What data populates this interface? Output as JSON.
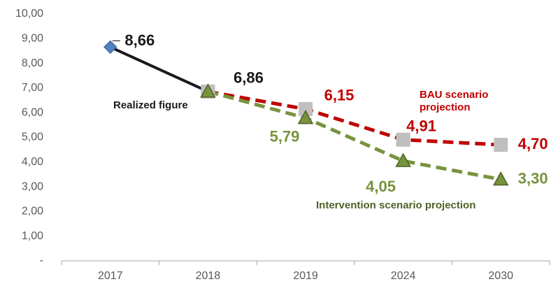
{
  "chart_data": {
    "type": "line",
    "categories": [
      "2017",
      "2018",
      "2019",
      "2024",
      "2030"
    ],
    "series": [
      {
        "name": "Realized figure",
        "color": "#1a1a1a",
        "marker": "diamond",
        "marker_color": "#4f81bd",
        "dashed": false,
        "values": [
          8.66,
          6.86,
          null,
          null,
          null
        ],
        "value_labels": [
          "8,66",
          "6,86",
          null,
          null,
          null
        ]
      },
      {
        "name": "BAU scenario projection",
        "color": "#c00000",
        "marker": "square",
        "marker_color": "#bfbfbf",
        "dashed": true,
        "values": [
          null,
          6.86,
          6.15,
          4.91,
          4.7
        ],
        "value_labels": [
          null,
          null,
          "6,15",
          "4,91",
          "4,70"
        ]
      },
      {
        "name": "Intervention scenario projection",
        "color": "#77933c",
        "marker": "triangle",
        "marker_color": "#77933c",
        "dashed": true,
        "values": [
          null,
          6.86,
          5.79,
          4.05,
          3.3
        ],
        "value_labels": [
          null,
          null,
          "5,79",
          "4,05",
          "3,30"
        ]
      }
    ],
    "ylim": [
      0,
      10
    ],
    "yticks": [
      {
        "value": 0,
        "label": "-"
      },
      {
        "value": 1,
        "label": "1,00"
      },
      {
        "value": 2,
        "label": "2,00"
      },
      {
        "value": 3,
        "label": "3,00"
      },
      {
        "value": 4,
        "label": "4,00"
      },
      {
        "value": 5,
        "label": "5,00"
      },
      {
        "value": 6,
        "label": "6,00"
      },
      {
        "value": 7,
        "label": "7,00"
      },
      {
        "value": 8,
        "label": "8,00"
      },
      {
        "value": 9,
        "label": "9,00"
      },
      {
        "value": 10,
        "label": "10,00"
      }
    ],
    "grid": false
  }
}
